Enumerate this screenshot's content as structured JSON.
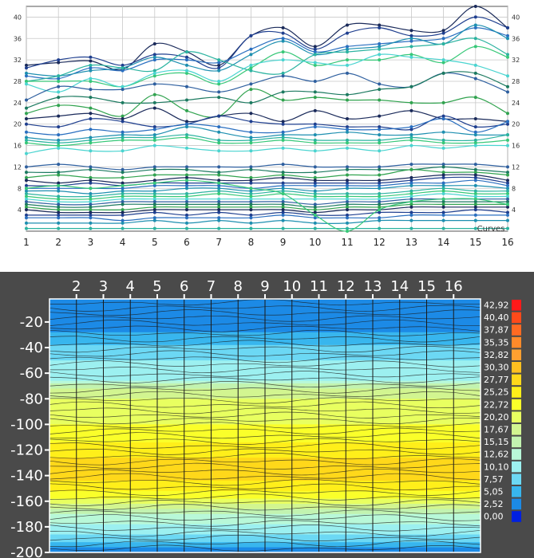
{
  "chart_data": [
    {
      "type": "line",
      "title": "",
      "annotation": "Curves",
      "x": [
        1,
        2,
        3,
        4,
        5,
        6,
        7,
        8,
        9,
        10,
        11,
        12,
        13,
        14,
        15,
        16
      ],
      "xlim": [
        1,
        16
      ],
      "ylim": [
        0,
        42
      ],
      "y_ticks": [
        4,
        8,
        12,
        16,
        20,
        24,
        28,
        32,
        36,
        40
      ],
      "x_ticks": [
        1,
        2,
        3,
        4,
        5,
        6,
        7,
        8,
        9,
        10,
        11,
        12,
        13,
        14,
        15,
        16
      ],
      "grid": true,
      "palette": [
        "#1a2a5a",
        "#1f3f8f",
        "#2a6fc0",
        "#1d8fb0",
        "#2bb3a0",
        "#37c878",
        "#4ad4d0",
        "#2e5f9f",
        "#1c7a60",
        "#31a34f"
      ],
      "series": [
        {
          "values": [
            31.0,
            31.5,
            31.8,
            30.2,
            35.0,
            33.5,
            31.0,
            36.5,
            38.0,
            34.5,
            38.5,
            38.5,
            37.5,
            37.5,
            42.0,
            38.0
          ]
        },
        {
          "values": [
            30.5,
            32.0,
            32.5,
            31.0,
            33.0,
            32.5,
            30.5,
            36.5,
            37.0,
            34.0,
            37.0,
            38.0,
            36.5,
            37.0,
            40.0,
            38.0
          ]
        },
        {
          "values": [
            29.0,
            28.5,
            30.5,
            30.0,
            32.0,
            32.0,
            31.5,
            34.0,
            36.0,
            33.5,
            34.5,
            35.0,
            35.5,
            36.0,
            38.0,
            36.5
          ]
        },
        {
          "values": [
            29.5,
            29.0,
            30.0,
            30.5,
            32.5,
            31.0,
            30.0,
            33.0,
            35.5,
            33.0,
            34.0,
            34.5,
            36.0,
            35.0,
            38.5,
            36.0
          ]
        },
        {
          "values": [
            28.0,
            29.0,
            31.0,
            30.5,
            30.0,
            33.5,
            32.0,
            30.0,
            29.5,
            33.0,
            33.5,
            34.0,
            34.5,
            35.0,
            36.0,
            33.0
          ]
        },
        {
          "values": [
            28.0,
            28.0,
            28.0,
            27.0,
            29.0,
            29.5,
            27.5,
            30.5,
            33.5,
            31.0,
            32.0,
            32.0,
            33.0,
            31.5,
            34.5,
            32.5
          ]
        },
        {
          "values": [
            27.5,
            26.0,
            28.5,
            27.0,
            29.5,
            30.0,
            28.0,
            31.0,
            32.0,
            31.5,
            31.0,
            33.0,
            32.5,
            32.0,
            31.0,
            29.0
          ]
        },
        {
          "values": [
            24.5,
            27.0,
            26.5,
            26.5,
            27.5,
            27.0,
            26.0,
            27.5,
            29.0,
            28.0,
            29.5,
            27.5,
            27.0,
            29.5,
            28.5,
            26.0
          ]
        },
        {
          "values": [
            23.0,
            25.0,
            25.0,
            24.0,
            24.0,
            24.5,
            25.0,
            24.0,
            26.0,
            26.0,
            25.5,
            26.5,
            27.0,
            29.5,
            29.5,
            27.0
          ]
        },
        {
          "values": [
            22.0,
            23.5,
            23.0,
            21.5,
            25.5,
            22.5,
            21.5,
            26.5,
            24.5,
            25.0,
            24.5,
            24.5,
            24.0,
            24.0,
            25.0,
            22.0
          ]
        },
        {
          "values": [
            21.0,
            21.5,
            22.0,
            21.0,
            23.0,
            20.5,
            21.5,
            22.0,
            20.5,
            22.5,
            21.0,
            21.5,
            22.5,
            21.0,
            21.0,
            20.5
          ]
        },
        {
          "values": [
            20.0,
            19.5,
            21.0,
            20.5,
            19.5,
            20.0,
            21.5,
            20.5,
            20.0,
            20.0,
            19.5,
            19.5,
            19.0,
            21.5,
            19.5,
            20.0
          ]
        },
        {
          "values": [
            18.5,
            18.0,
            19.0,
            18.5,
            19.0,
            20.0,
            19.5,
            18.5,
            18.5,
            19.5,
            19.0,
            19.0,
            19.5,
            21.0,
            18.5,
            20.5
          ]
        },
        {
          "values": [
            17.5,
            17.0,
            17.5,
            18.0,
            18.0,
            19.5,
            18.5,
            17.5,
            18.0,
            18.0,
            18.5,
            18.0,
            18.0,
            18.5,
            18.0,
            18.0
          ]
        },
        {
          "values": [
            17.0,
            16.5,
            17.0,
            17.5,
            17.5,
            18.0,
            17.0,
            17.0,
            17.5,
            17.0,
            17.0,
            17.0,
            17.5,
            17.0,
            17.0,
            18.0
          ]
        },
        {
          "values": [
            16.5,
            16.0,
            16.5,
            17.0,
            17.0,
            17.5,
            16.5,
            16.5,
            17.0,
            16.5,
            16.5,
            16.5,
            17.0,
            16.5,
            16.5,
            17.0
          ]
        },
        {
          "values": [
            14.5,
            15.5,
            15.0,
            15.0,
            16.0,
            15.5,
            15.0,
            15.0,
            15.5,
            15.0,
            15.5,
            15.0,
            16.0,
            15.5,
            16.0,
            16.0
          ]
        },
        {
          "values": [
            12.0,
            12.5,
            12.0,
            11.5,
            12.0,
            12.0,
            12.0,
            12.0,
            12.5,
            12.0,
            12.0,
            12.0,
            12.5,
            12.5,
            12.5,
            12.0
          ]
        },
        {
          "values": [
            11.0,
            11.0,
            11.5,
            11.0,
            11.5,
            11.5,
            11.0,
            11.5,
            11.0,
            11.0,
            11.5,
            11.5,
            11.5,
            12.0,
            11.5,
            11.0
          ]
        },
        {
          "values": [
            10.0,
            10.5,
            10.0,
            10.0,
            10.5,
            10.5,
            10.5,
            10.0,
            10.5,
            10.0,
            10.5,
            10.5,
            11.5,
            11.0,
            11.0,
            10.5
          ]
        },
        {
          "values": [
            9.5,
            9.0,
            9.5,
            9.0,
            9.5,
            10.0,
            9.5,
            9.5,
            10.0,
            9.5,
            9.5,
            9.5,
            10.0,
            10.5,
            10.5,
            9.5
          ]
        },
        {
          "values": [
            8.5,
            8.5,
            9.0,
            8.5,
            9.0,
            9.0,
            9.0,
            9.0,
            9.0,
            9.0,
            9.0,
            9.0,
            9.5,
            10.0,
            10.0,
            9.0
          ]
        },
        {
          "values": [
            8.0,
            8.0,
            8.0,
            8.0,
            8.5,
            8.5,
            8.5,
            8.0,
            8.5,
            8.5,
            8.5,
            8.5,
            9.0,
            9.0,
            9.5,
            8.5
          ]
        },
        {
          "values": [
            7.5,
            7.5,
            7.0,
            7.5,
            7.5,
            8.0,
            8.0,
            7.5,
            8.0,
            7.5,
            8.0,
            8.0,
            8.5,
            8.5,
            8.5,
            8.0
          ]
        },
        {
          "values": [
            7.0,
            6.5,
            6.5,
            7.0,
            7.0,
            7.0,
            7.5,
            7.0,
            7.5,
            7.0,
            7.0,
            7.0,
            7.5,
            8.0,
            7.5,
            7.5
          ]
        },
        {
          "values": [
            6.5,
            6.0,
            6.0,
            6.5,
            6.5,
            6.5,
            7.0,
            6.5,
            7.0,
            6.5,
            6.5,
            6.5,
            7.0,
            7.5,
            7.0,
            7.0
          ]
        },
        {
          "values": [
            6.0,
            5.5,
            5.5,
            6.0,
            6.0,
            6.0,
            6.0,
            6.0,
            6.0,
            6.0,
            6.0,
            6.0,
            6.5,
            7.0,
            6.5,
            6.5
          ]
        },
        {
          "values": [
            5.5,
            5.0,
            5.0,
            5.5,
            5.5,
            5.5,
            5.5,
            5.5,
            5.5,
            5.0,
            5.5,
            5.5,
            6.0,
            6.0,
            6.0,
            6.0
          ]
        },
        {
          "values": [
            5.0,
            4.5,
            4.5,
            5.0,
            5.0,
            5.0,
            5.0,
            5.0,
            5.0,
            4.5,
            5.0,
            5.0,
            5.5,
            5.5,
            5.5,
            5.5
          ]
        },
        {
          "values": [
            4.5,
            4.0,
            4.0,
            4.0,
            4.5,
            4.5,
            4.5,
            4.5,
            4.5,
            4.0,
            4.5,
            4.5,
            5.0,
            5.0,
            5.0,
            5.0
          ]
        },
        {
          "values": [
            4.0,
            3.5,
            3.5,
            3.5,
            4.0,
            4.0,
            4.0,
            4.0,
            4.0,
            3.5,
            4.0,
            4.0,
            4.5,
            4.5,
            4.5,
            4.5
          ]
        },
        {
          "values": [
            3.0,
            3.0,
            3.0,
            3.0,
            3.5,
            3.0,
            3.5,
            3.0,
            3.5,
            3.0,
            3.0,
            3.5,
            3.5,
            3.5,
            4.0,
            3.5
          ]
        },
        {
          "values": [
            2.5,
            2.5,
            2.5,
            2.0,
            2.5,
            2.5,
            2.5,
            2.5,
            3.0,
            2.5,
            2.5,
            2.5,
            3.0,
            3.0,
            3.0,
            3.0
          ]
        },
        {
          "values": [
            1.5,
            1.5,
            1.5,
            1.5,
            2.0,
            1.5,
            2.0,
            1.5,
            2.0,
            1.5,
            1.5,
            2.0,
            2.0,
            2.0,
            2.0,
            2.0
          ]
        },
        {
          "values": [
            0.5,
            0.5,
            0.5,
            0.5,
            0.5,
            0.5,
            0.5,
            0.5,
            0.5,
            0.5,
            0.5,
            0.5,
            0.5,
            0.5,
            0.5,
            0.5
          ]
        },
        {
          "values": [
            8.0,
            8.5,
            8.0,
            8.5,
            9.0,
            9.5,
            9.0,
            8.0,
            7.0,
            3.0,
            0.0,
            4.0,
            5.5,
            6.0,
            6.0,
            5.0
          ]
        }
      ]
    },
    {
      "type": "heatmap",
      "title": "",
      "x": [
        2,
        3,
        4,
        5,
        6,
        7,
        8,
        9,
        10,
        11,
        12,
        13,
        14,
        15,
        16
      ],
      "xlim": [
        1,
        17
      ],
      "ylim": [
        -200,
        -2
      ],
      "y_ticks": [
        -20,
        -40,
        -60,
        -80,
        -100,
        -120,
        -140,
        -160,
        -180,
        -200
      ],
      "legend": {
        "labels": [
          "42,92",
          "40,40",
          "37,87",
          "35,35",
          "32,82",
          "30,30",
          "27,77",
          "25,25",
          "22,72",
          "20,20",
          "17,67",
          "15,15",
          "12,62",
          "10,10",
          "7,57",
          "5,05",
          "2,52",
          "0,00"
        ],
        "colors": [
          "#ff1a1a",
          "#ff4a1a",
          "#ff6a22",
          "#ff8a2a",
          "#ffa030",
          "#ffc020",
          "#ffd81a",
          "#ffef1a",
          "#faff2a",
          "#e8ff60",
          "#d2f590",
          "#c2f3b0",
          "#b8f8d8",
          "#9cf0f0",
          "#6cd8f4",
          "#38b6ee",
          "#1c8ae6",
          "#0020e0"
        ]
      },
      "profile": [
        {
          "depth": -2,
          "value": 2.0
        },
        {
          "depth": -15,
          "value": 1.5
        },
        {
          "depth": -25,
          "value": 3.0
        },
        {
          "depth": -35,
          "value": 5.5
        },
        {
          "depth": -45,
          "value": 8.0
        },
        {
          "depth": -55,
          "value": 9.5
        },
        {
          "depth": -65,
          "value": 11.0
        },
        {
          "depth": -72,
          "value": 17.0
        },
        {
          "depth": -85,
          "value": 20.5
        },
        {
          "depth": -100,
          "value": 21.5
        },
        {
          "depth": -115,
          "value": 24.0
        },
        {
          "depth": -125,
          "value": 26.5
        },
        {
          "depth": -132,
          "value": 29.0
        },
        {
          "depth": -140,
          "value": 28.0
        },
        {
          "depth": -150,
          "value": 25.0
        },
        {
          "depth": -160,
          "value": 21.0
        },
        {
          "depth": -168,
          "value": 15.0
        },
        {
          "depth": -178,
          "value": 11.0
        },
        {
          "depth": -188,
          "value": 8.0
        },
        {
          "depth": -196,
          "value": 3.5
        },
        {
          "depth": -200,
          "value": 1.0
        }
      ]
    }
  ]
}
